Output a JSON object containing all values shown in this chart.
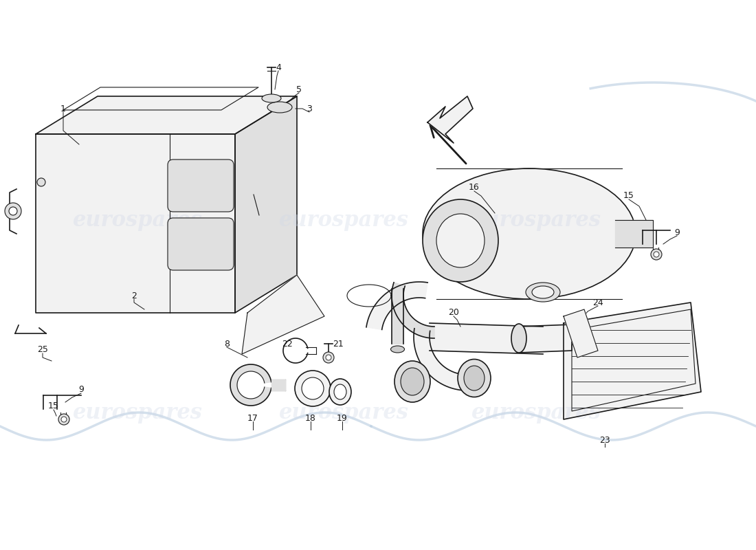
{
  "background_color": "#ffffff",
  "line_color": "#1a1a1a",
  "fill_light": "#f2f2f2",
  "fill_mid": "#e0e0e0",
  "fill_dark": "#cccccc",
  "watermark_text": "eurospares",
  "watermark_color": "#d0d8e8",
  "wave_color": "#b8cce0"
}
